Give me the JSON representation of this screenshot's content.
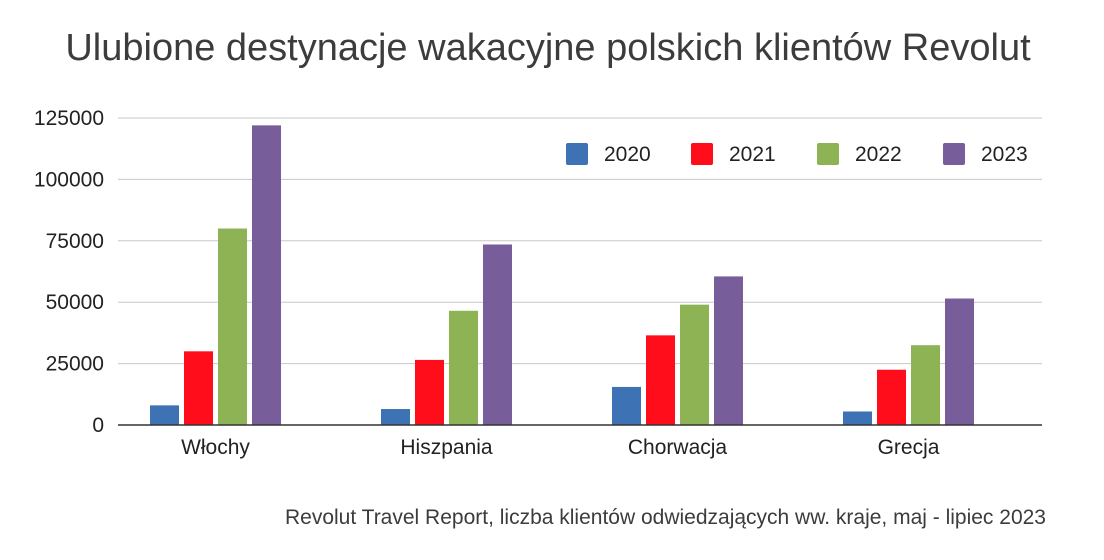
{
  "chart_data": {
    "type": "bar",
    "title": "Ulubione destynacje wakacyjne polskich klientów Revolut",
    "source": "Revolut Travel Report, liczba klientów odwiedzających ww. kraje, maj - lipiec 2023",
    "categories": [
      "Włochy",
      "Hiszpania",
      "Chorwacja",
      "Grecja"
    ],
    "series": [
      {
        "name": "2020",
        "color": "#3d72b4",
        "values": [
          8000,
          6500,
          15500,
          5500
        ]
      },
      {
        "name": "2021",
        "color": "#ff0d1a",
        "values": [
          30000,
          26500,
          36500,
          22500
        ]
      },
      {
        "name": "2022",
        "color": "#8db355",
        "values": [
          80000,
          46500,
          49000,
          32500
        ]
      },
      {
        "name": "2023",
        "color": "#775d99",
        "values": [
          122000,
          73500,
          60500,
          51500
        ]
      }
    ],
    "ylim": [
      0,
      125000
    ],
    "yticks": [
      "0",
      "25000",
      "50000",
      "75000",
      "100000",
      "125000"
    ],
    "grid": true,
    "legend_position": "top-right"
  }
}
